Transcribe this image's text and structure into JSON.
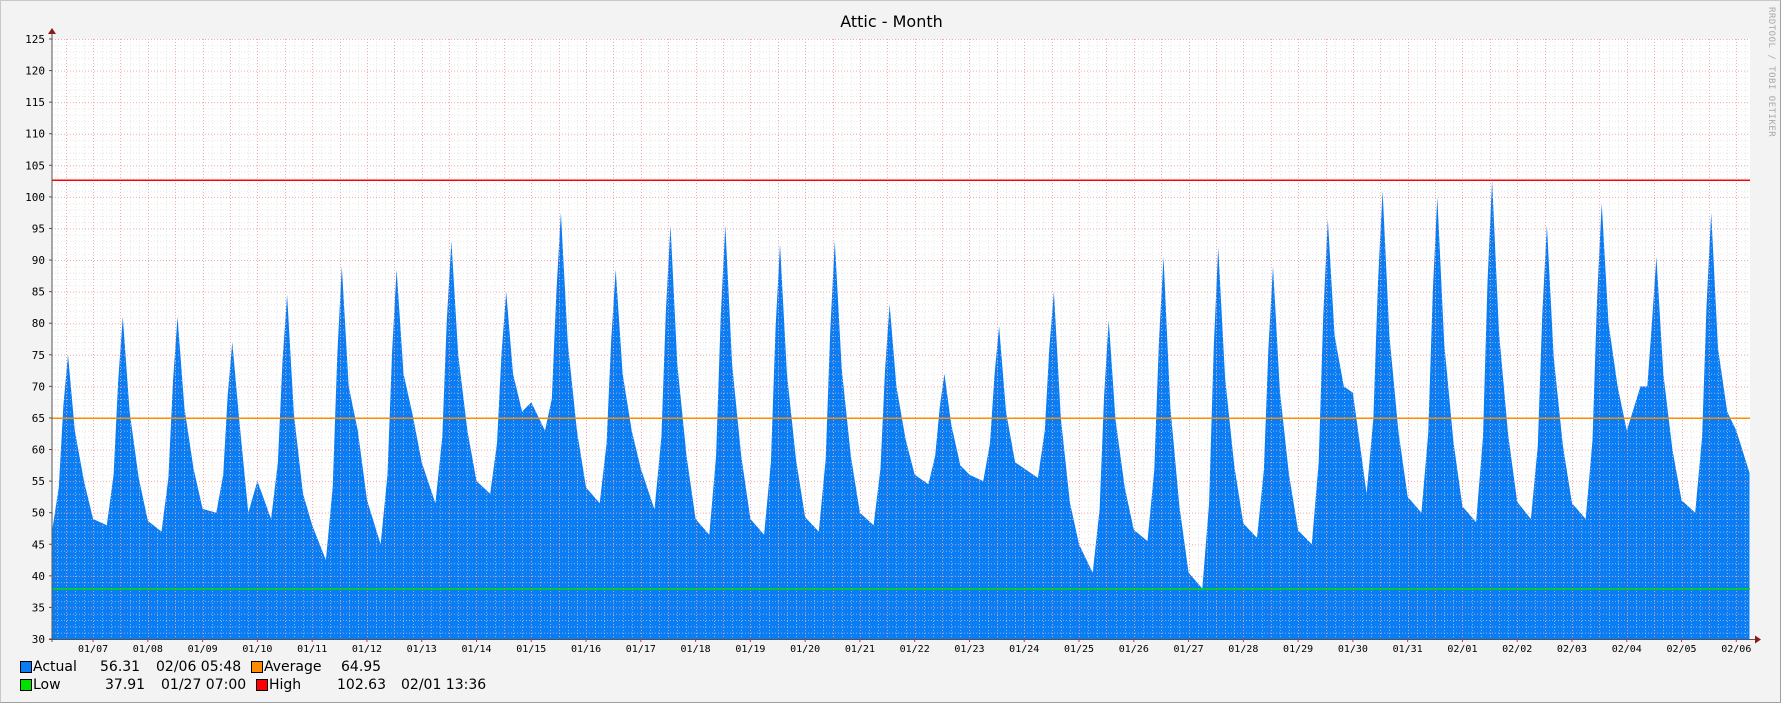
{
  "title": "Attic - Month",
  "watermark": "RRDTOOL / TOBI OETIKER",
  "colors": {
    "actual": "#0a7cf4",
    "average": "#ff8c00",
    "low": "#00e000",
    "high": "#ff0000",
    "background": "#f3f3f3",
    "plot": "#ffffff",
    "grid_minor": "#d8d8d8",
    "grid_major": "#f2a0a0"
  },
  "legend": {
    "actual": {
      "label": "Actual",
      "value": "56.31",
      "time": "02/06 05:48"
    },
    "average": {
      "label": "Average",
      "value": "64.95"
    },
    "low": {
      "label": "Low",
      "value": "37.91",
      "time": "01/27 07:00"
    },
    "high": {
      "label": "High",
      "value": "102.63",
      "time": "02/01 13:36"
    }
  },
  "chart_data": {
    "type": "area",
    "title": "Attic - Month",
    "ylim": [
      30,
      125
    ],
    "yticks": [
      "30",
      "35",
      "40",
      "45",
      "50",
      "55",
      "60",
      "65",
      "70",
      "75",
      "80",
      "85",
      "90",
      "95",
      "100",
      "105",
      "110",
      "115",
      "120",
      "125"
    ],
    "xlim": [
      "01/06 06:00",
      "02/06 06:00"
    ],
    "xticks": [
      "01/07",
      "01/08",
      "01/09",
      "01/10",
      "01/11",
      "01/12",
      "01/13",
      "01/14",
      "01/15",
      "01/16",
      "01/17",
      "01/18",
      "01/19",
      "01/20",
      "01/21",
      "01/22",
      "01/23",
      "01/24",
      "01/25",
      "01/26",
      "01/27",
      "01/28",
      "01/29",
      "01/30",
      "01/31",
      "02/01",
      "02/02",
      "02/03",
      "02/04",
      "02/05",
      "02/06"
    ],
    "grid": true,
    "hlines": [
      {
        "name": "High",
        "value": 102.63,
        "color": "#ff0000"
      },
      {
        "name": "Average",
        "value": 64.95,
        "color": "#ff8c00"
      },
      {
        "name": "Low",
        "value": 37.91,
        "color": "#00e000"
      }
    ],
    "series": [
      {
        "name": "Actual",
        "color": "#0a7cf4",
        "hours": [
          "00:00",
          "06:00",
          "09:00",
          "11:00",
          "13:00",
          "16:00",
          "20:00"
        ],
        "days": [
          [
            "01/06",
            null,
            47,
            54,
            67,
            75,
            63,
            55
          ],
          [
            "01/07",
            49,
            48,
            56,
            71,
            81,
            66,
            55.5
          ],
          [
            "01/08",
            48.7,
            47,
            55.5,
            70.8,
            81,
            66.6,
            57
          ],
          [
            "01/09",
            50.6,
            50,
            56,
            68.6,
            77,
            64.9,
            50
          ],
          [
            "01/10",
            55,
            49,
            58,
            74,
            84.5,
            65.6,
            53
          ],
          [
            "01/11",
            48,
            42.5,
            54,
            75,
            89,
            70,
            63
          ],
          [
            "01/12",
            52,
            45,
            56,
            75.5,
            88.5,
            72,
            65.5
          ],
          [
            "01/13",
            58,
            51.5,
            62,
            80.5,
            93,
            75,
            63
          ],
          [
            "01/14",
            55,
            53,
            61,
            75.4,
            85,
            72,
            66
          ],
          [
            "01/15",
            67.5,
            63,
            68,
            85,
            97.5,
            76.8,
            63
          ],
          [
            "01/16",
            54,
            51.5,
            61,
            77.4,
            88.5,
            72,
            63
          ],
          [
            "01/17",
            57,
            50.5,
            62,
            82,
            95.5,
            73.5,
            59
          ],
          [
            "01/18",
            49,
            46.5,
            59,
            81,
            95.5,
            73.5,
            59
          ],
          [
            "01/19",
            49,
            46.5,
            58,
            79,
            92.5,
            72,
            58.4
          ],
          [
            "01/20",
            49.3,
            47,
            58.5,
            79,
            93,
            72.8,
            59
          ],
          [
            "01/21",
            50,
            48,
            57,
            72.5,
            83,
            70,
            61.6
          ],
          [
            "01/22",
            56,
            54.5,
            59,
            66.8,
            72,
            64,
            57.5
          ],
          [
            "01/23",
            56,
            55,
            61,
            72,
            79.5,
            66,
            58
          ],
          [
            "01/24",
            57,
            55.5,
            63,
            76,
            85,
            65,
            51.6
          ],
          [
            "01/25",
            45,
            40.5,
            50.5,
            68.5,
            80.5,
            64.7,
            54
          ],
          [
            "01/26",
            47.3,
            45.5,
            56.8,
            77,
            90.5,
            66.8,
            51
          ],
          [
            "01/27",
            40.5,
            38,
            51.5,
            76,
            92,
            71.3,
            57.5
          ],
          [
            "01/28",
            48.3,
            46,
            56.8,
            76,
            89,
            69.2,
            56
          ],
          [
            "01/29",
            47.2,
            45,
            58,
            81,
            96.5,
            78,
            70
          ],
          [
            "01/30",
            69,
            53,
            65,
            86.6,
            101,
            78,
            62.75
          ],
          [
            "01/31",
            52.5,
            50,
            62.5,
            85,
            100,
            76.8,
            61.4
          ],
          [
            "02/01",
            51,
            48.5,
            62,
            86.5,
            102.63,
            78.5,
            62.4
          ],
          [
            "02/02",
            51.7,
            49,
            60.6,
            81.5,
            95.5,
            74.6,
            60.6
          ],
          [
            "02/03",
            51.5,
            49,
            61.5,
            84,
            99,
            80,
            70
          ],
          [
            "02/04",
            63,
            70,
            70,
            80,
            90.5,
            72,
            60
          ],
          [
            "02/05",
            52,
            50,
            62,
            83,
            97.5,
            76,
            66
          ],
          [
            "02/06",
            63,
            null,
            null,
            null,
            null,
            null,
            null
          ]
        ],
        "last": [
          "02/06 05:48",
          56.31
        ]
      }
    ]
  }
}
